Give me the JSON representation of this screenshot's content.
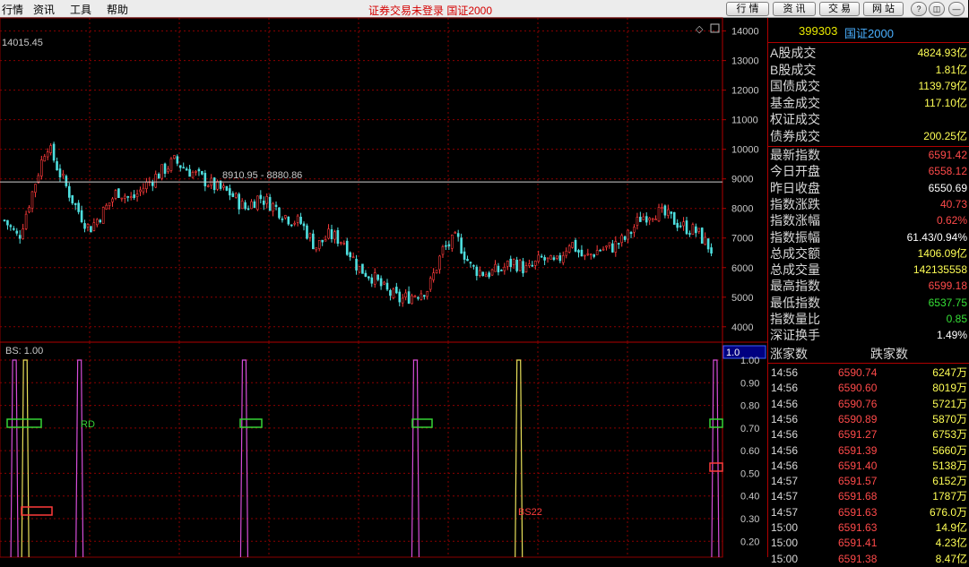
{
  "menu": [
    "行情",
    "资讯",
    "工具",
    "帮助"
  ],
  "window_title": "证券交易未登录  国证2000",
  "nav_buttons": [
    "行 情",
    "资 讯",
    "交 易",
    "网 站"
  ],
  "win_controls": [
    "?",
    "◫",
    "—",
    "✕"
  ],
  "chart": {
    "high_label": "14015.45",
    "level_line_label": "8910.95 - 8880.86",
    "level_value": 8895,
    "price_ticks": [
      "14000",
      "13000",
      "12000",
      "11000",
      "10000",
      "9000",
      "8000",
      "7000",
      "6000",
      "5000",
      "4000"
    ],
    "indicator_label": "BS: 1.00",
    "indicator_value_box": "1.0",
    "indicator_ticks": [
      "1.00",
      "0.90",
      "0.80",
      "0.70",
      "0.60",
      "0.50",
      "0.40",
      "0.30",
      "0.20"
    ],
    "marker_labels": {
      "rd": "RD",
      "bs22": "BS22"
    },
    "colors": {
      "up": "#ff3b3b",
      "down": "#4fe0e0",
      "grid": "#8a0000",
      "magenta": "#d54dd8",
      "yellow": "#e8e05a",
      "green": "#36d436"
    }
  },
  "chart_data": {
    "type": "candlestick",
    "ylim": [
      3600,
      14200
    ],
    "close_path": [
      7600,
      7000,
      8600,
      10200,
      9100,
      8100,
      7300,
      7900,
      8600,
      8300,
      8800,
      9200,
      9600,
      9300,
      9000,
      8700,
      8500,
      8000,
      8400,
      8100,
      7700,
      7500,
      6700,
      7100,
      6900,
      6000,
      5700,
      5200,
      4900,
      5100,
      5300,
      6600,
      7000,
      6000,
      5800,
      5900,
      6200,
      5900,
      6300,
      6100,
      6900,
      6300,
      6600,
      6700,
      7000,
      7700,
      7900,
      7700,
      7400,
      7200,
      6600
    ],
    "bs_pulses": [
      {
        "pos": 0.02,
        "color": "magenta"
      },
      {
        "pos": 0.035,
        "color": "yellow"
      },
      {
        "pos": 0.11,
        "color": "magenta"
      },
      {
        "pos": 0.338,
        "color": "magenta"
      },
      {
        "pos": 0.575,
        "color": "magenta"
      },
      {
        "pos": 0.718,
        "color": "yellow"
      },
      {
        "pos": 0.99,
        "color": "magenta"
      }
    ]
  },
  "stats": {
    "code": "399303",
    "name": "国证2000",
    "volume_rows": [
      {
        "label": "A股成交",
        "value": "4824.93亿"
      },
      {
        "label": "B股成交",
        "value": "1.81亿"
      },
      {
        "label": "国债成交",
        "value": "1139.79亿"
      },
      {
        "label": "基金成交",
        "value": "117.10亿"
      },
      {
        "label": "权证成交",
        "value": ""
      },
      {
        "label": "债券成交",
        "value": "200.25亿"
      }
    ],
    "index_rows": [
      {
        "label": "最新指数",
        "value": "6591.42",
        "color": "#ff4a4a"
      },
      {
        "label": "今日开盘",
        "value": "6558.12",
        "color": "#ff4a4a"
      },
      {
        "label": "昨日收盘",
        "value": "6550.69",
        "color": "#ffffff"
      },
      {
        "label": "指数涨跌",
        "value": "40.73",
        "color": "#ff4a4a"
      },
      {
        "label": "指数涨幅",
        "value": "0.62%",
        "color": "#ff4a4a"
      },
      {
        "label": "指数振幅",
        "value": "61.43/0.94%",
        "color": "#ffffff"
      },
      {
        "label": "总成交额",
        "value": "1406.09亿",
        "color": "#ffff55"
      },
      {
        "label": "总成交量",
        "value": "142135558",
        "color": "#ffff55"
      },
      {
        "label": "最高指数",
        "value": "6599.18",
        "color": "#ff4a4a"
      },
      {
        "label": "最低指数",
        "value": "6537.75",
        "color": "#36e036"
      },
      {
        "label": "指数量比",
        "value": "0.85",
        "color": "#36e036"
      },
      {
        "label": "深证换手",
        "value": "1.49%",
        "color": "#ffffff"
      }
    ],
    "list_header": {
      "up": "涨家数",
      "down": "跌家数"
    },
    "ticks": [
      {
        "time": "14:56",
        "price": "6590.74",
        "vol": "6247万"
      },
      {
        "time": "14:56",
        "price": "6590.60",
        "vol": "8019万"
      },
      {
        "time": "14:56",
        "price": "6590.76",
        "vol": "5721万"
      },
      {
        "time": "14:56",
        "price": "6590.89",
        "vol": "5870万"
      },
      {
        "time": "14:56",
        "price": "6591.27",
        "vol": "6753万"
      },
      {
        "time": "14:56",
        "price": "6591.39",
        "vol": "5660万"
      },
      {
        "time": "14:56",
        "price": "6591.40",
        "vol": "5138万"
      },
      {
        "time": "14:57",
        "price": "6591.57",
        "vol": "6152万"
      },
      {
        "time": "14:57",
        "price": "6591.68",
        "vol": "1787万"
      },
      {
        "time": "14:57",
        "price": "6591.63",
        "vol": "676.0万"
      },
      {
        "time": "15:00",
        "price": "6591.63",
        "vol": "14.9亿"
      },
      {
        "time": "15:00",
        "price": "6591.41",
        "vol": "4.23亿"
      },
      {
        "time": "15:00",
        "price": "6591.38",
        "vol": "8.47亿"
      }
    ]
  }
}
